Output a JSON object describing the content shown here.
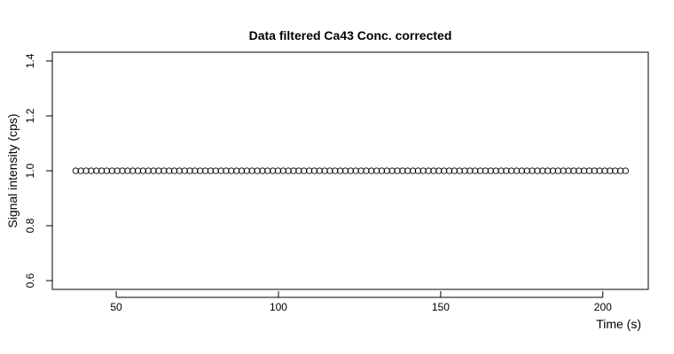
{
  "chart_data": {
    "type": "scatter",
    "title": "Data filtered Ca43 Conc. corrected",
    "xlabel": "Time (s)",
    "ylabel": "Signal intensity (cps)",
    "xlim": [
      30.3,
      214.0
    ],
    "ylim": [
      0.568,
      1.432
    ],
    "x_ticks": [
      50,
      100,
      150,
      200
    ],
    "x_tick_labels": [
      "50",
      "100",
      "150",
      "200"
    ],
    "y_ticks": [
      0.6,
      0.8,
      1.0,
      1.2,
      1.4
    ],
    "y_tick_labels": [
      "0.6",
      "0.8",
      "1.0",
      "1.2",
      "1.4"
    ],
    "grid": false,
    "marker": "open-circle",
    "series": [
      {
        "x_start": 37.5,
        "x_end": 207.0,
        "n_points": 107,
        "y_value": 1.0
      }
    ]
  },
  "colors": {
    "background": "#ffffff",
    "foreground": "#000000"
  }
}
